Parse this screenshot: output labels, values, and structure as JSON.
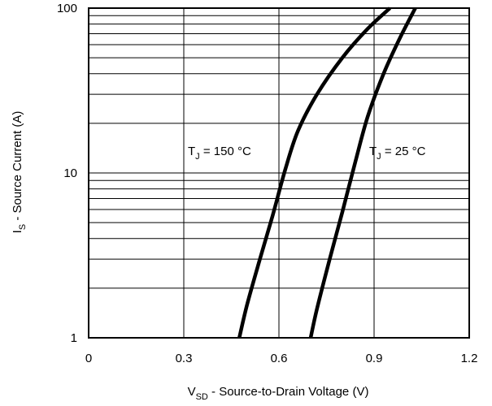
{
  "chart_data": {
    "type": "line",
    "x_scale": "linear",
    "y_scale": "log",
    "xlim": [
      0,
      1.2
    ],
    "ylim": [
      1,
      100
    ],
    "grid": true,
    "xticks": [
      0,
      0.3,
      0.6,
      0.9,
      1.2
    ],
    "xtick_labels": [
      "0",
      "0.3",
      "0.6",
      "0.9",
      "1.2"
    ],
    "yticks": [
      1,
      10,
      100
    ],
    "ytick_labels": [
      "1",
      "10",
      "100"
    ],
    "xlabel": {
      "main": "V",
      "sub": "SD",
      "rest": "  -  Source-to-Drain Voltage (V)"
    },
    "ylabel": {
      "main": "I",
      "sub": "S",
      "rest": "  -  Source Current (A)"
    },
    "series": [
      {
        "name": "TJ = 150 °C",
        "label_main": "T",
        "label_sub": "J",
        "label_rest": " = 150 °C",
        "x": [
          0.475,
          0.5,
          0.54,
          0.58,
          0.62,
          0.66,
          0.72,
          0.8,
          0.88,
          0.95
        ],
        "y": [
          1,
          1.6,
          3.0,
          5.5,
          10.5,
          18.0,
          30,
          50,
          75,
          100
        ]
      },
      {
        "name": "TJ = 25 °C",
        "label_main": "T",
        "label_sub": "J",
        "label_rest": " = 25 °C",
        "x": [
          0.7,
          0.72,
          0.76,
          0.8,
          0.84,
          0.88,
          0.93,
          0.98,
          1.03
        ],
        "y": [
          1,
          1.5,
          3.0,
          5.8,
          11.5,
          22.0,
          40,
          65,
          100
        ]
      }
    ]
  }
}
